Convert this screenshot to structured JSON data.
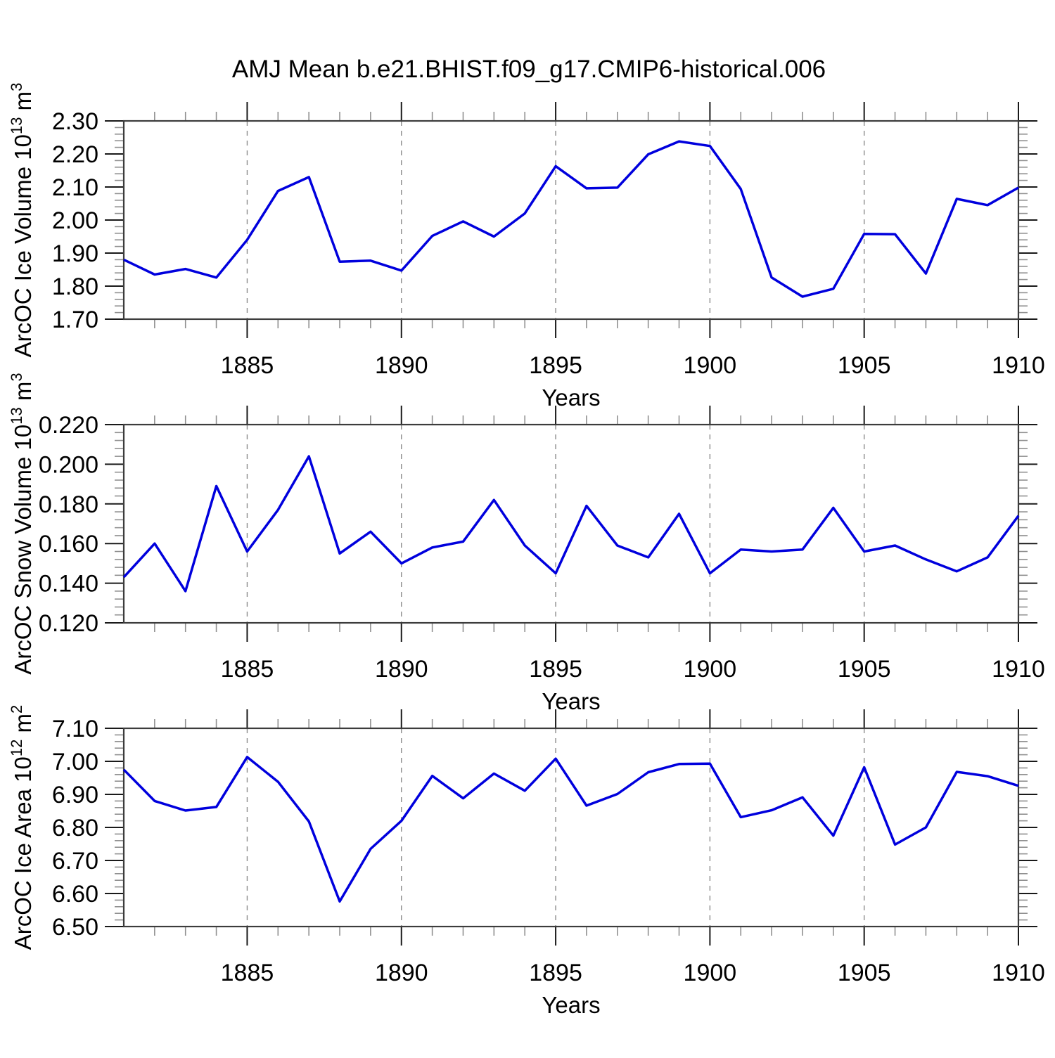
{
  "title": "AMJ Mean b.e21.BHIST.f09_g17.CMIP6-historical.006",
  "chart_data": {
    "type": "line",
    "title": "AMJ Mean b.e21.BHIST.f09_g17.CMIP6-historical.006",
    "xlabel": "Years",
    "xlim": [
      1881,
      1910
    ],
    "x_years": [
      1881,
      1882,
      1883,
      1884,
      1885,
      1886,
      1887,
      1888,
      1889,
      1890,
      1891,
      1892,
      1893,
      1894,
      1895,
      1896,
      1897,
      1898,
      1899,
      1900,
      1901,
      1902,
      1903,
      1904,
      1905,
      1906,
      1907,
      1908,
      1909,
      1910
    ],
    "x_major_ticks": [
      1885,
      1890,
      1895,
      1900,
      1905,
      1910
    ],
    "x_gridlines": [
      1885,
      1890,
      1895,
      1900,
      1905
    ],
    "grid_style": "dashed",
    "legend": "none",
    "line_color": "#0000dd",
    "series": [
      {
        "ylabel_parts": [
          {
            "t": "ArcOC Ice Volume 10"
          },
          {
            "t": "13",
            "sup": true
          },
          {
            "t": " m"
          },
          {
            "t": "3",
            "sup": true
          }
        ],
        "ylabel_plain": "ArcOC Ice Volume 10^13 m^3",
        "ylim": [
          1.7,
          2.3
        ],
        "ytick_step": 0.1,
        "yminor_step": 0.02,
        "ytick_decimals": 2,
        "ytick_labels": [
          "2.30",
          "2.20",
          "2.10",
          "2.00",
          "1.90",
          "1.80",
          "1.70"
        ],
        "values": [
          1.88,
          1.835,
          1.852,
          1.826,
          1.94,
          2.088,
          2.13,
          1.874,
          1.877,
          1.847,
          1.952,
          1.996,
          1.95,
          2.02,
          2.163,
          2.096,
          2.098,
          2.199,
          2.238,
          2.224,
          2.094,
          1.826,
          1.768,
          1.792,
          1.958,
          1.957,
          1.838,
          2.064,
          2.045,
          2.098
        ]
      },
      {
        "ylabel_parts": [
          {
            "t": "ArcOC Snow Volume 10"
          },
          {
            "t": "13",
            "sup": true
          },
          {
            "t": " m"
          },
          {
            "t": "3",
            "sup": true
          }
        ],
        "ylabel_plain": "ArcOC Snow Volume 10^13 m^3",
        "ylim": [
          0.12,
          0.22
        ],
        "ytick_step": 0.02,
        "yminor_step": 0.004,
        "ytick_decimals": 3,
        "ytick_labels": [
          "0.220",
          "0.200",
          "0.180",
          "0.160",
          "0.140",
          "0.120"
        ],
        "values": [
          0.143,
          0.16,
          0.136,
          0.189,
          0.156,
          0.177,
          0.204,
          0.155,
          0.166,
          0.15,
          0.158,
          0.161,
          0.182,
          0.159,
          0.145,
          0.179,
          0.159,
          0.153,
          0.175,
          0.145,
          0.157,
          0.156,
          0.157,
          0.178,
          0.156,
          0.159,
          0.152,
          0.146,
          0.153,
          0.174
        ]
      },
      {
        "ylabel_parts": [
          {
            "t": "ArcOC Ice Area 10"
          },
          {
            "t": "12",
            "sup": true
          },
          {
            "t": " m"
          },
          {
            "t": "2",
            "sup": true
          }
        ],
        "ylabel_plain": "ArcOC Ice Area 10^12 m^2",
        "ylim": [
          6.5,
          7.1
        ],
        "ytick_step": 0.1,
        "yminor_step": 0.02,
        "ytick_decimals": 2,
        "ytick_labels": [
          "7.10",
          "7.00",
          "6.90",
          "6.80",
          "6.70",
          "6.60",
          "6.50"
        ],
        "values": [
          6.975,
          6.88,
          6.851,
          6.862,
          7.013,
          6.938,
          6.818,
          6.576,
          6.735,
          6.82,
          6.956,
          6.888,
          6.963,
          6.911,
          7.008,
          6.866,
          6.901,
          6.967,
          6.992,
          6.993,
          6.831,
          6.852,
          6.891,
          6.775,
          6.982,
          6.748,
          6.8,
          6.968,
          6.955,
          6.926
        ]
      }
    ]
  },
  "colors": {
    "line": "#0000dd",
    "frame": "#3c3c3c",
    "major_tick": "#1a1a1a",
    "minor_tick": "#909090",
    "gridline": "#8c8c8c",
    "text": "#000000",
    "background": "#ffffff"
  }
}
